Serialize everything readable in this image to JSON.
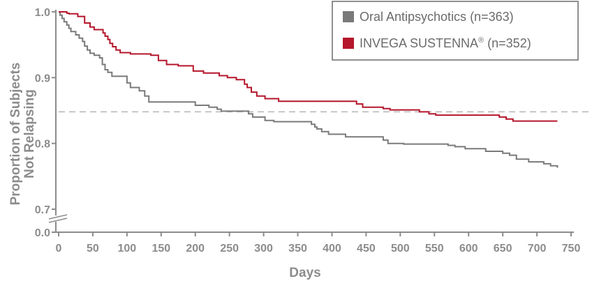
{
  "chart_data": {
    "type": "line",
    "subtype": "kaplan-meier step curve",
    "xlabel": "Days",
    "ylabel_lines": [
      "Proportion of Subjects",
      "Not Relapsing"
    ],
    "x_ticks": [
      0,
      50,
      100,
      150,
      200,
      250,
      300,
      350,
      400,
      450,
      500,
      550,
      600,
      650,
      700,
      750
    ],
    "y_ticks": [
      {
        "value": 0.0,
        "label": "0.0"
      },
      {
        "value": 0.7,
        "label": "0.7"
      },
      {
        "value": 0.8,
        "label": "0.8"
      },
      {
        "value": 0.9,
        "label": "0.9"
      },
      {
        "value": 1.0,
        "label": "1.0"
      }
    ],
    "xlim": [
      0,
      750
    ],
    "ylim": [
      0.7,
      1.0
    ],
    "y_axis_break": "between 0.0 and 0.7",
    "reference_line": {
      "y": 0.848,
      "style": "dashed",
      "color": "#b5b5b5"
    },
    "legend_position": "top-right",
    "legend": [
      {
        "series": "oral",
        "text": "Oral Antipsychotics (n=363)"
      },
      {
        "series": "invega",
        "text_before": "INVEGA SUSTENNA",
        "superscript": "®",
        "text_after": " (n=352)"
      }
    ],
    "series": [
      {
        "id": "oral",
        "name": "Oral Antipsychotics (n=363)",
        "color": "#7a7a7a",
        "points": [
          [
            0,
            1.0
          ],
          [
            2,
            0.995
          ],
          [
            5,
            0.99
          ],
          [
            8,
            0.985
          ],
          [
            12,
            0.98
          ],
          [
            15,
            0.975
          ],
          [
            18,
            0.97
          ],
          [
            25,
            0.965
          ],
          [
            30,
            0.96
          ],
          [
            35,
            0.955
          ],
          [
            38,
            0.948
          ],
          [
            42,
            0.942
          ],
          [
            46,
            0.937
          ],
          [
            52,
            0.934
          ],
          [
            60,
            0.93
          ],
          [
            64,
            0.92
          ],
          [
            68,
            0.912
          ],
          [
            72,
            0.908
          ],
          [
            78,
            0.902
          ],
          [
            100,
            0.892
          ],
          [
            105,
            0.885
          ],
          [
            118,
            0.88
          ],
          [
            126,
            0.872
          ],
          [
            132,
            0.863
          ],
          [
            200,
            0.858
          ],
          [
            220,
            0.855
          ],
          [
            232,
            0.852
          ],
          [
            238,
            0.849
          ],
          [
            278,
            0.845
          ],
          [
            284,
            0.84
          ],
          [
            302,
            0.835
          ],
          [
            315,
            0.833
          ],
          [
            370,
            0.829
          ],
          [
            375,
            0.825
          ],
          [
            378,
            0.822
          ],
          [
            385,
            0.818
          ],
          [
            395,
            0.814
          ],
          [
            420,
            0.81
          ],
          [
            475,
            0.805
          ],
          [
            482,
            0.8
          ],
          [
            505,
            0.799
          ],
          [
            570,
            0.797
          ],
          [
            580,
            0.795
          ],
          [
            595,
            0.792
          ],
          [
            625,
            0.788
          ],
          [
            650,
            0.785
          ],
          [
            660,
            0.782
          ],
          [
            670,
            0.776
          ],
          [
            688,
            0.772
          ],
          [
            710,
            0.769
          ],
          [
            720,
            0.766
          ],
          [
            730,
            0.763
          ]
        ]
      },
      {
        "id": "invega",
        "name": "INVEGA SUSTENNA® (n=352)",
        "color": "#b5162b",
        "points": [
          [
            0,
            1.0
          ],
          [
            12,
            0.998
          ],
          [
            15,
            0.997
          ],
          [
            28,
            0.993
          ],
          [
            38,
            0.983
          ],
          [
            46,
            0.977
          ],
          [
            52,
            0.973
          ],
          [
            65,
            0.968
          ],
          [
            68,
            0.963
          ],
          [
            72,
            0.958
          ],
          [
            75,
            0.952
          ],
          [
            79,
            0.947
          ],
          [
            84,
            0.942
          ],
          [
            90,
            0.938
          ],
          [
            105,
            0.936
          ],
          [
            135,
            0.934
          ],
          [
            146,
            0.926
          ],
          [
            158,
            0.92
          ],
          [
            175,
            0.918
          ],
          [
            197,
            0.91
          ],
          [
            212,
            0.907
          ],
          [
            235,
            0.903
          ],
          [
            247,
            0.9
          ],
          [
            260,
            0.897
          ],
          [
            272,
            0.89
          ],
          [
            276,
            0.885
          ],
          [
            282,
            0.878
          ],
          [
            290,
            0.872
          ],
          [
            302,
            0.868
          ],
          [
            322,
            0.864
          ],
          [
            436,
            0.86
          ],
          [
            445,
            0.855
          ],
          [
            475,
            0.853
          ],
          [
            485,
            0.851
          ],
          [
            528,
            0.848
          ],
          [
            542,
            0.845
          ],
          [
            552,
            0.843
          ],
          [
            645,
            0.84
          ],
          [
            655,
            0.837
          ],
          [
            665,
            0.834
          ],
          [
            718,
            0.834
          ],
          [
            730,
            0.834
          ]
        ]
      }
    ]
  }
}
